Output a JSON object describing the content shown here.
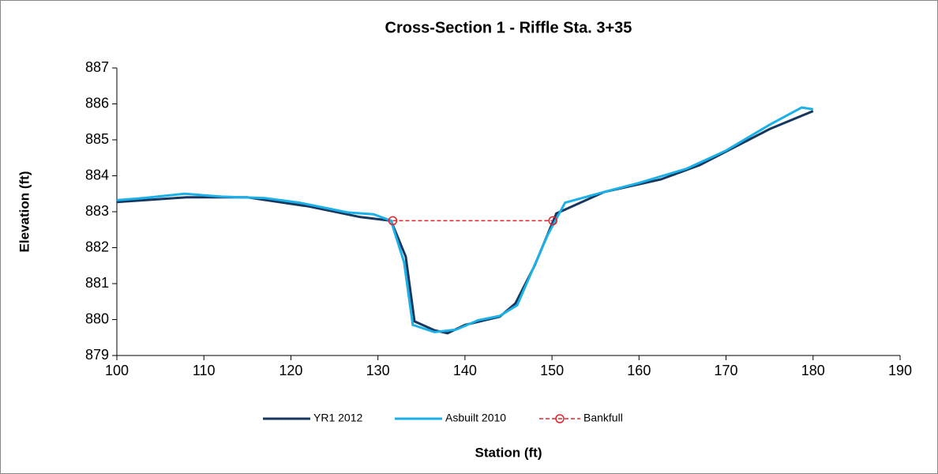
{
  "chart_data": {
    "type": "line",
    "title": "Cross-Section 1 - Riffle Sta. 3+35",
    "x_label": "Station (ft)",
    "y_label": "Elevation (ft)",
    "xlim": [
      100,
      190
    ],
    "xticks": [
      100,
      110,
      120,
      130,
      140,
      150,
      160,
      170,
      180,
      190
    ],
    "ylim": [
      879,
      887
    ],
    "yticks": [
      879,
      880,
      881,
      882,
      883,
      884,
      885,
      886,
      887
    ],
    "grid": false,
    "legend": "bottom",
    "series": [
      {
        "name": "YR1 2012",
        "color": "#17375e",
        "style": "solid",
        "marker": "none",
        "x": [
          100,
          108,
          115,
          122,
          128,
          131.5,
          133.2,
          134.2,
          136.5,
          138,
          140,
          144,
          145.8,
          148,
          150.5,
          156,
          162.5,
          167,
          175,
          180
        ],
        "values": [
          883.27,
          883.4,
          883.4,
          883.15,
          882.85,
          882.75,
          881.75,
          879.95,
          879.7,
          879.62,
          879.85,
          880.08,
          880.45,
          881.5,
          882.95,
          883.55,
          883.9,
          884.3,
          885.3,
          885.8
        ]
      },
      {
        "name": "Asbuilt 2010",
        "color": "#1ab0e8",
        "style": "solid",
        "marker": "none",
        "x": [
          100,
          103,
          107.8,
          112,
          117,
          121,
          126.5,
          129.5,
          131.5,
          133,
          134,
          136.5,
          139,
          141.5,
          144,
          146,
          149.5,
          151.5,
          156,
          160,
          165.5,
          170,
          175,
          178.7,
          180
        ],
        "values": [
          883.32,
          883.38,
          883.5,
          883.42,
          883.38,
          883.25,
          882.98,
          882.93,
          882.75,
          881.6,
          879.85,
          879.65,
          879.72,
          879.98,
          880.1,
          880.4,
          882.35,
          883.25,
          883.55,
          883.8,
          884.2,
          884.7,
          885.42,
          885.9,
          885.85
        ]
      },
      {
        "name": "Bankfull",
        "color": "#e8202a",
        "style": "dashed",
        "marker": "circle",
        "x": [
          131.7,
          150.1
        ],
        "values": [
          882.75,
          882.75
        ]
      }
    ]
  }
}
